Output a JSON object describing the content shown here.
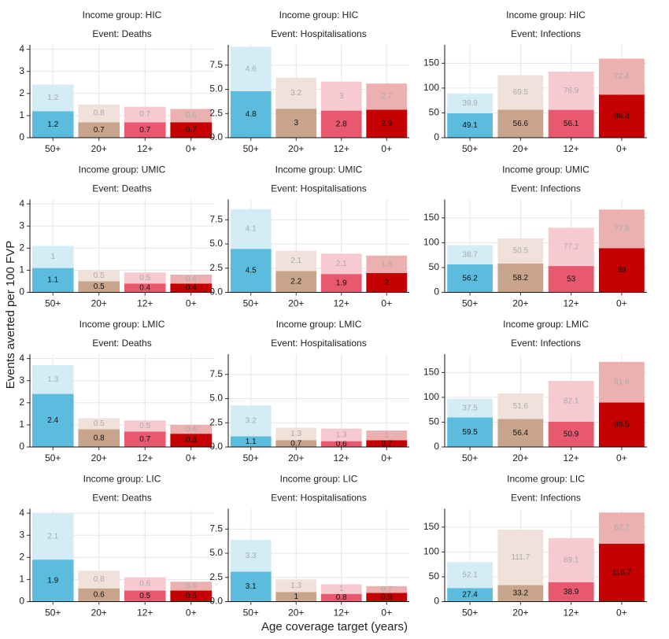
{
  "ylabel": "Events averted per 100 FVP",
  "xlabel": "Age coverage target (years)",
  "chart_data": [
    {
      "type": "bar",
      "stacked": true,
      "title": "Income group: HIC",
      "subtitle": "Event: Deaths",
      "categories": [
        "50+",
        "20+",
        "12+",
        "0+"
      ],
      "ylim": [
        0,
        4.2
      ],
      "yticks": [
        0,
        1,
        2,
        3,
        4
      ],
      "grid": true,
      "series": [
        {
          "colors": [
            "#5bbcdd",
            "#c8a48c",
            "#e8586e",
            "#c40000"
          ],
          "values": [
            1.2,
            0.7,
            0.7,
            0.7
          ]
        },
        {
          "colors": [
            "#d4ecf5",
            "#f0e2da",
            "#f7c9d0",
            "#ebb0b0"
          ],
          "values": [
            1.2,
            0.8,
            0.7,
            0.6
          ]
        }
      ]
    },
    {
      "type": "bar",
      "stacked": true,
      "title": "Income group: HIC",
      "subtitle": "Event: Hospitalisations",
      "categories": [
        "50+",
        "20+",
        "12+",
        "0+"
      ],
      "ylim": [
        0,
        9.6
      ],
      "yticks": [
        {
          "value": 0,
          "label": "0.0"
        },
        2.5,
        {
          "value": 5,
          "label": "5.0"
        },
        7.5
      ],
      "grid": true,
      "series": [
        {
          "colors": [
            "#5bbcdd",
            "#c8a48c",
            "#e8586e",
            "#c40000"
          ],
          "values": [
            4.8,
            3,
            2.8,
            2.9
          ]
        },
        {
          "colors": [
            "#d4ecf5",
            "#f0e2da",
            "#f7c9d0",
            "#ebb0b0"
          ],
          "values": [
            4.6,
            3.2,
            3,
            2.7
          ]
        }
      ]
    },
    {
      "type": "bar",
      "stacked": true,
      "title": "Income group: HIC",
      "subtitle": "Event: Infections",
      "categories": [
        "50+",
        "20+",
        "12+",
        "0+"
      ],
      "ylim": [
        0,
        187
      ],
      "yticks": [
        0,
        50,
        100,
        150
      ],
      "grid": true,
      "series": [
        {
          "colors": [
            "#5bbcdd",
            "#c8a48c",
            "#e8586e",
            "#c40000"
          ],
          "values": [
            49.1,
            56.6,
            56.1,
            86.8
          ]
        },
        {
          "colors": [
            "#d4ecf5",
            "#f0e2da",
            "#f7c9d0",
            "#ebb0b0"
          ],
          "values": [
            39.9,
            69.5,
            76.9,
            72.4
          ]
        }
      ]
    },
    {
      "type": "bar",
      "stacked": true,
      "title": "Income group: UMIC",
      "subtitle": "Event: Deaths",
      "categories": [
        "50+",
        "20+",
        "12+",
        "0+"
      ],
      "ylim": [
        0,
        4.2
      ],
      "yticks": [
        0,
        1,
        2,
        3,
        4
      ],
      "grid": true,
      "series": [
        {
          "colors": [
            "#5bbcdd",
            "#c8a48c",
            "#e8586e",
            "#c40000"
          ],
          "values": [
            1.1,
            0.5,
            0.4,
            0.4
          ]
        },
        {
          "colors": [
            "#d4ecf5",
            "#f0e2da",
            "#f7c9d0",
            "#ebb0b0"
          ],
          "values": [
            1,
            0.5,
            0.5,
            0.4
          ]
        }
      ]
    },
    {
      "type": "bar",
      "stacked": true,
      "title": "Income group: UMIC",
      "subtitle": "Event: Hospitalisations",
      "categories": [
        "50+",
        "20+",
        "12+",
        "0+"
      ],
      "ylim": [
        0,
        9.6
      ],
      "yticks": [
        {
          "value": 0,
          "label": "0.0"
        },
        2.5,
        {
          "value": 5,
          "label": "5.0"
        },
        7.5
      ],
      "grid": true,
      "series": [
        {
          "colors": [
            "#5bbcdd",
            "#c8a48c",
            "#e8586e",
            "#c40000"
          ],
          "values": [
            4.5,
            2.2,
            1.9,
            2
          ]
        },
        {
          "colors": [
            "#d4ecf5",
            "#f0e2da",
            "#f7c9d0",
            "#ebb0b0"
          ],
          "values": [
            4.1,
            2.1,
            2.1,
            1.8
          ]
        }
      ]
    },
    {
      "type": "bar",
      "stacked": true,
      "title": "Income group: UMIC",
      "subtitle": "Event: Infections",
      "categories": [
        "50+",
        "20+",
        "12+",
        "0+"
      ],
      "ylim": [
        0,
        187
      ],
      "yticks": [
        0,
        50,
        100,
        150
      ],
      "grid": true,
      "series": [
        {
          "colors": [
            "#5bbcdd",
            "#c8a48c",
            "#e8586e",
            "#c40000"
          ],
          "values": [
            56.2,
            58.2,
            53,
            89
          ]
        },
        {
          "colors": [
            "#d4ecf5",
            "#f0e2da",
            "#f7c9d0",
            "#ebb0b0"
          ],
          "values": [
            38.7,
            50.5,
            77.2,
            77.8
          ]
        }
      ]
    },
    {
      "type": "bar",
      "stacked": true,
      "title": "Income group: LMIC",
      "subtitle": "Event: Deaths",
      "categories": [
        "50+",
        "20+",
        "12+",
        "0+"
      ],
      "ylim": [
        0,
        4.2
      ],
      "yticks": [
        0,
        1,
        2,
        3,
        4
      ],
      "grid": true,
      "series": [
        {
          "colors": [
            "#5bbcdd",
            "#c8a48c",
            "#e8586e",
            "#c40000"
          ],
          "values": [
            2.4,
            0.8,
            0.7,
            0.6
          ]
        },
        {
          "colors": [
            "#d4ecf5",
            "#f0e2da",
            "#f7c9d0",
            "#ebb0b0"
          ],
          "values": [
            1.3,
            0.5,
            0.5,
            0.4
          ]
        }
      ]
    },
    {
      "type": "bar",
      "stacked": true,
      "title": "Income group: LMIC",
      "subtitle": "Event: Hospitalisations",
      "categories": [
        "50+",
        "20+",
        "12+",
        "0+"
      ],
      "ylim": [
        0,
        9.6
      ],
      "yticks": [
        {
          "value": 0,
          "label": "0.0"
        },
        2.5,
        {
          "value": 5,
          "label": "5.0"
        },
        7.5
      ],
      "grid": true,
      "series": [
        {
          "colors": [
            "#5bbcdd",
            "#c8a48c",
            "#e8586e",
            "#c40000"
          ],
          "values": [
            1.1,
            0.7,
            0.6,
            0.7
          ]
        },
        {
          "colors": [
            "#d4ecf5",
            "#f0e2da",
            "#f7c9d0",
            "#ebb0b0"
          ],
          "values": [
            3.2,
            1.3,
            1.3,
            1
          ]
        }
      ]
    },
    {
      "type": "bar",
      "stacked": true,
      "title": "Income group: LMIC",
      "subtitle": "Event: Infections",
      "categories": [
        "50+",
        "20+",
        "12+",
        "0+"
      ],
      "ylim": [
        0,
        187
      ],
      "yticks": [
        0,
        50,
        100,
        150
      ],
      "grid": true,
      "series": [
        {
          "colors": [
            "#5bbcdd",
            "#c8a48c",
            "#e8586e",
            "#c40000"
          ],
          "values": [
            59.5,
            56.4,
            50.9,
            89.5
          ]
        },
        {
          "colors": [
            "#d4ecf5",
            "#f0e2da",
            "#f7c9d0",
            "#ebb0b0"
          ],
          "values": [
            37.5,
            51.6,
            82.1,
            81.9
          ]
        }
      ]
    },
    {
      "type": "bar",
      "stacked": true,
      "title": "Income group: LIC",
      "subtitle": "Event: Deaths",
      "categories": [
        "50+",
        "20+",
        "12+",
        "0+"
      ],
      "ylim": [
        0,
        4.2
      ],
      "yticks": [
        0,
        1,
        2,
        3,
        4
      ],
      "grid": true,
      "series": [
        {
          "colors": [
            "#5bbcdd",
            "#c8a48c",
            "#e8586e",
            "#c40000"
          ],
          "values": [
            1.9,
            0.6,
            0.5,
            0.5
          ]
        },
        {
          "colors": [
            "#d4ecf5",
            "#f0e2da",
            "#f7c9d0",
            "#ebb0b0"
          ],
          "values": [
            2.1,
            0.8,
            0.6,
            0.4
          ]
        }
      ]
    },
    {
      "type": "bar",
      "stacked": true,
      "title": "Income group: LIC",
      "subtitle": "Event: Hospitalisations",
      "categories": [
        "50+",
        "20+",
        "12+",
        "0+"
      ],
      "ylim": [
        0,
        9.6
      ],
      "yticks": [
        {
          "value": 0,
          "label": "0.0"
        },
        2.5,
        {
          "value": 5,
          "label": "5.0"
        },
        7.5
      ],
      "grid": true,
      "series": [
        {
          "colors": [
            "#5bbcdd",
            "#c8a48c",
            "#e8586e",
            "#c40000"
          ],
          "values": [
            3.1,
            1,
            0.8,
            0.9
          ]
        },
        {
          "colors": [
            "#d4ecf5",
            "#f0e2da",
            "#f7c9d0",
            "#ebb0b0"
          ],
          "values": [
            3.3,
            1.3,
            1,
            0.7
          ]
        }
      ]
    },
    {
      "type": "bar",
      "stacked": true,
      "title": "Income group: LIC",
      "subtitle": "Event: Infections",
      "categories": [
        "50+",
        "20+",
        "12+",
        "0+"
      ],
      "ylim": [
        0,
        187
      ],
      "yticks": [
        0,
        50,
        100,
        150
      ],
      "grid": true,
      "series": [
        {
          "colors": [
            "#5bbcdd",
            "#c8a48c",
            "#e8586e",
            "#c40000"
          ],
          "values": [
            27.4,
            33.2,
            38.9,
            116.7
          ]
        },
        {
          "colors": [
            "#d4ecf5",
            "#f0e2da",
            "#f7c9d0",
            "#ebb0b0"
          ],
          "values": [
            52.1,
            111.7,
            89.1,
            62.7
          ]
        }
      ]
    }
  ]
}
